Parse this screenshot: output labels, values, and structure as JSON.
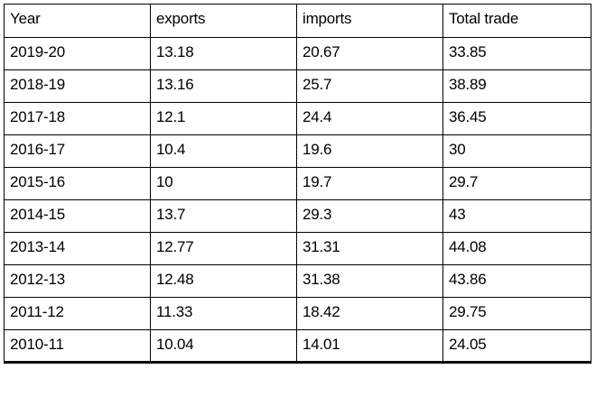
{
  "chart_data": {
    "type": "table",
    "columns": [
      "Year",
      "exports",
      "imports",
      "Total trade"
    ],
    "rows": [
      [
        "2019-20",
        "13.18",
        "20.67",
        "33.85"
      ],
      [
        "2018-19",
        "13.16",
        "25.7",
        "38.89"
      ],
      [
        "2017-18",
        "12.1",
        "24.4",
        "36.45"
      ],
      [
        "2016-17",
        "10.4",
        "19.6",
        "30"
      ],
      [
        "2015-16",
        "10",
        "19.7",
        "29.7"
      ],
      [
        "2014-15",
        "13.7",
        "29.3",
        "43"
      ],
      [
        "2013-14",
        "12.77",
        "31.31",
        "44.08"
      ],
      [
        "2012-13",
        "12.48",
        "31.38",
        "43.86"
      ],
      [
        "2011-12",
        "11.33",
        "18.42",
        "29.75"
      ],
      [
        "2010-11",
        "10.04",
        "14.01",
        "24.05"
      ]
    ]
  }
}
